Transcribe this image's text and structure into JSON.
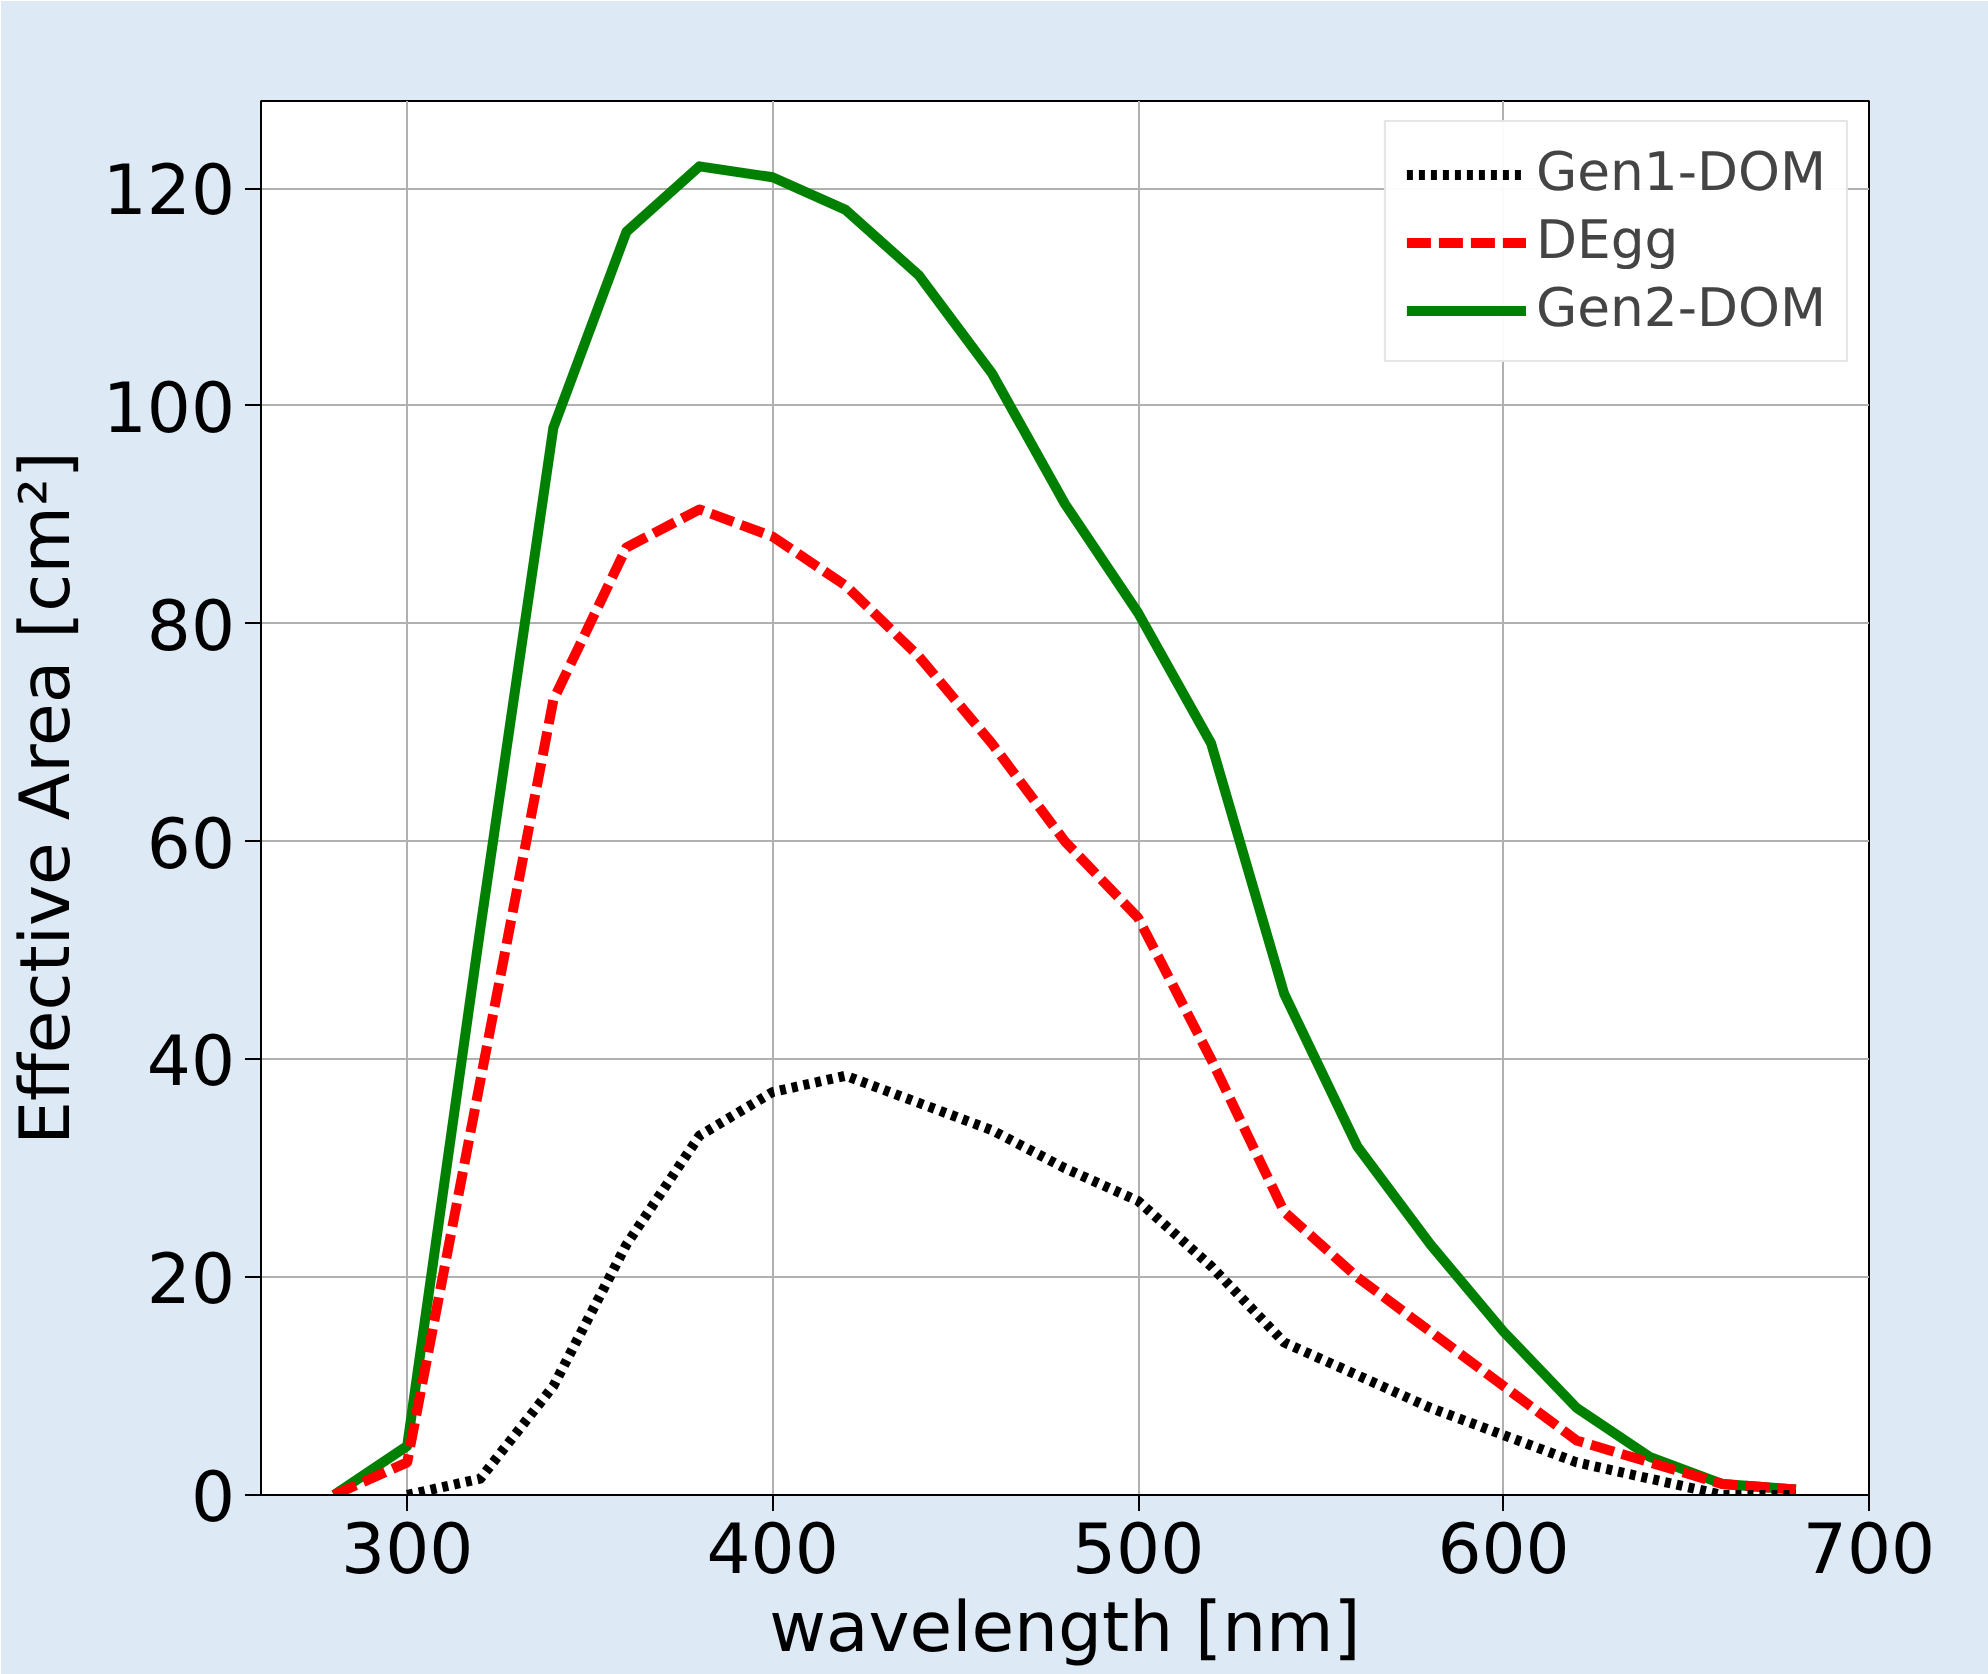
{
  "chart_data": {
    "type": "line",
    "xlabel": "wavelength [nm]",
    "ylabel": "Effective Area [cm²]",
    "x": [
      280,
      300,
      320,
      340,
      360,
      380,
      400,
      420,
      440,
      460,
      480,
      500,
      520,
      540,
      560,
      580,
      600,
      620,
      640,
      660,
      680
    ],
    "series": [
      {
        "name": "Gen1-DOM",
        "color": "#000000",
        "line_style": "dotted",
        "values": [
          null,
          0,
          1.5,
          10,
          23,
          33,
          37,
          38.5,
          36,
          33.5,
          30,
          27,
          21,
          14,
          11,
          8,
          5.5,
          3,
          1.5,
          0,
          0
        ]
      },
      {
        "name": "DEgg",
        "color": "#ff0000",
        "line_style": "dashed",
        "values": [
          0,
          3,
          38,
          73,
          87,
          90.5,
          88,
          83.5,
          77,
          69,
          60,
          53,
          40,
          26,
          20,
          15,
          10,
          5,
          3,
          1,
          0.5
        ]
      },
      {
        "name": "Gen2-DOM",
        "color": "#008000",
        "line_style": "solid",
        "values": [
          0,
          4.5,
          52,
          98,
          116,
          122,
          121,
          118,
          112,
          103,
          91,
          81,
          69,
          46,
          32,
          23,
          15,
          8,
          3.5,
          1,
          0.5
        ]
      }
    ],
    "xlim": [
      260,
      700
    ],
    "ylim": [
      0,
      128
    ],
    "xticks": [
      300,
      400,
      500,
      600,
      700
    ],
    "yticks": [
      0,
      20,
      40,
      60,
      80,
      100,
      120
    ],
    "grid": true,
    "legend": "top right",
    "marker": "none"
  }
}
